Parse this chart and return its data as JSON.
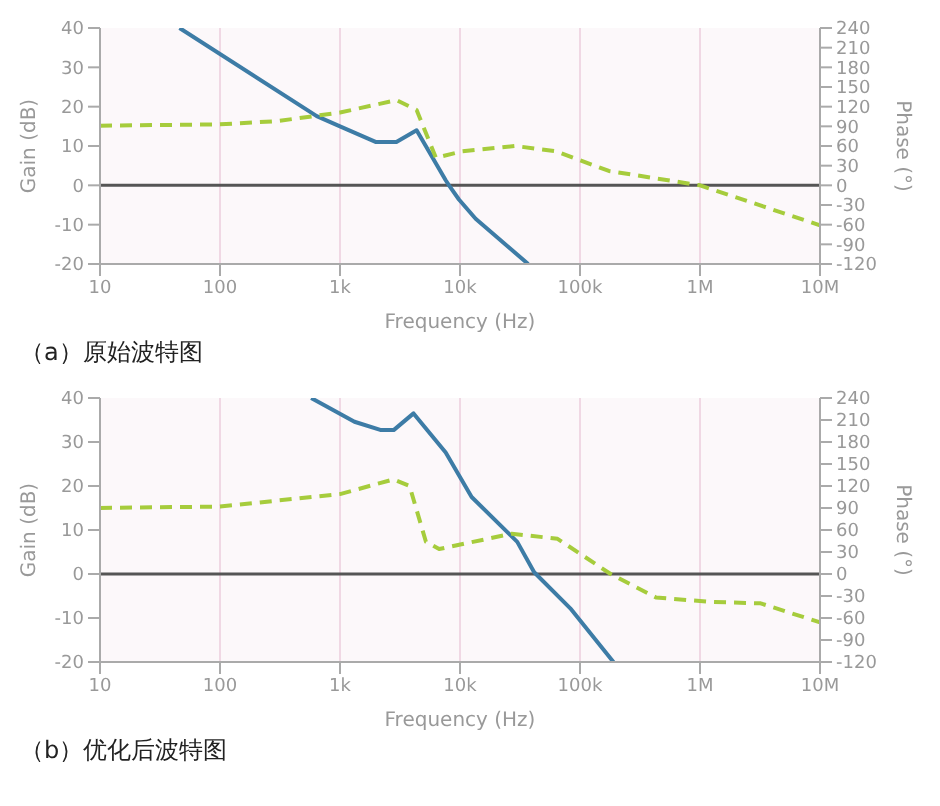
{
  "chart_data": [
    {
      "type": "line",
      "xlabel": "Frequency (Hz)",
      "ylabel": "Gain (dB)",
      "y2label": "Phase (°)",
      "log": "x",
      "grid": "x",
      "marker": "none",
      "annotations": [
        "（a）原始波特图"
      ],
      "xlim": [
        10,
        10000000
      ],
      "xticks": [
        {
          "value": 10,
          "label": "10"
        },
        {
          "value": 100,
          "label": "100"
        },
        {
          "value": 1000,
          "label": "1k"
        },
        {
          "value": 10000,
          "label": "10k"
        },
        {
          "value": 100000,
          "label": "100k"
        },
        {
          "value": 1000000,
          "label": "1M"
        },
        {
          "value": 10000000,
          "label": "10M"
        }
      ],
      "ylim": [
        -20,
        40
      ],
      "yticks": [
        -20,
        -10,
        0,
        10,
        20,
        30,
        40
      ],
      "y2lim": [
        -120,
        240
      ],
      "y2ticks": [
        -120,
        -90,
        -60,
        -30,
        0,
        30,
        60,
        90,
        120,
        150,
        180,
        210,
        240
      ],
      "ref_lines": [
        {
          "axis": "y",
          "value": 0,
          "color": "#555555"
        }
      ],
      "series": [
        {
          "color": "#3d7ca6",
          "line_style": "solid",
          "x": [
            46,
            640,
            1000,
            2000,
            2950,
            4350,
            7600,
            8100,
            9800,
            13500,
            37000
          ],
          "values": [
            40,
            17.6,
            15,
            11,
            11,
            14,
            1.3,
            0,
            -3.6,
            -8.5,
            -20
          ]
        },
        {
          "color": "#a6cc3c",
          "line_style": "dashed",
          "axis": "y2",
          "x": [
            10,
            100,
            300,
            1000,
            2950,
            4350,
            6300,
            10500,
            29000,
            63000,
            174000,
            1000000,
            10000000
          ],
          "values": [
            91,
            93,
            98,
            111,
            130,
            115,
            42,
            52,
            60,
            52,
            22,
            0,
            -61
          ]
        }
      ]
    },
    {
      "type": "line",
      "xlabel": "Frequency (Hz)",
      "ylabel": "Gain (dB)",
      "y2label": "Phase (°)",
      "log": "x",
      "grid": "x",
      "marker": "none",
      "annotations": [
        "（b）优化后波特图"
      ],
      "xlim": [
        10,
        10000000
      ],
      "xticks": [
        {
          "value": 10,
          "label": "10"
        },
        {
          "value": 100,
          "label": "100"
        },
        {
          "value": 1000,
          "label": "1k"
        },
        {
          "value": 10000,
          "label": "10k"
        },
        {
          "value": 100000,
          "label": "100k"
        },
        {
          "value": 1000000,
          "label": "1M"
        },
        {
          "value": 10000000,
          "label": "10M"
        }
      ],
      "ylim": [
        -20,
        40
      ],
      "yticks": [
        -20,
        -10,
        0,
        10,
        20,
        30,
        40
      ],
      "y2lim": [
        -120,
        240
      ],
      "y2ticks": [
        -120,
        -90,
        -60,
        -30,
        0,
        30,
        60,
        90,
        120,
        150,
        180,
        210,
        240
      ],
      "ref_lines": [
        {
          "axis": "y",
          "value": 0,
          "color": "#555555"
        }
      ],
      "series": [
        {
          "color": "#3d7ca6",
          "line_style": "solid",
          "x": [
            575,
            1320,
            2200,
            2800,
            4100,
            7600,
            12500,
            30000,
            41500,
            83000,
            190000
          ],
          "values": [
            40,
            34.6,
            32.7,
            32.7,
            36.5,
            27.6,
            17.5,
            7.3,
            0.4,
            -7.8,
            -20
          ]
        },
        {
          "color": "#a6cc3c",
          "line_style": "dashed",
          "axis": "y2",
          "x": [
            10,
            100,
            1000,
            2800,
            3800,
            5200,
            6700,
            27000,
            65000,
            180000,
            430000,
            1200000,
            3200000,
            10000000
          ],
          "values": [
            90,
            92,
            109,
            129,
            120,
            44,
            34,
            55,
            48,
            0,
            -32,
            -38,
            -40,
            -66
          ]
        }
      ]
    }
  ]
}
